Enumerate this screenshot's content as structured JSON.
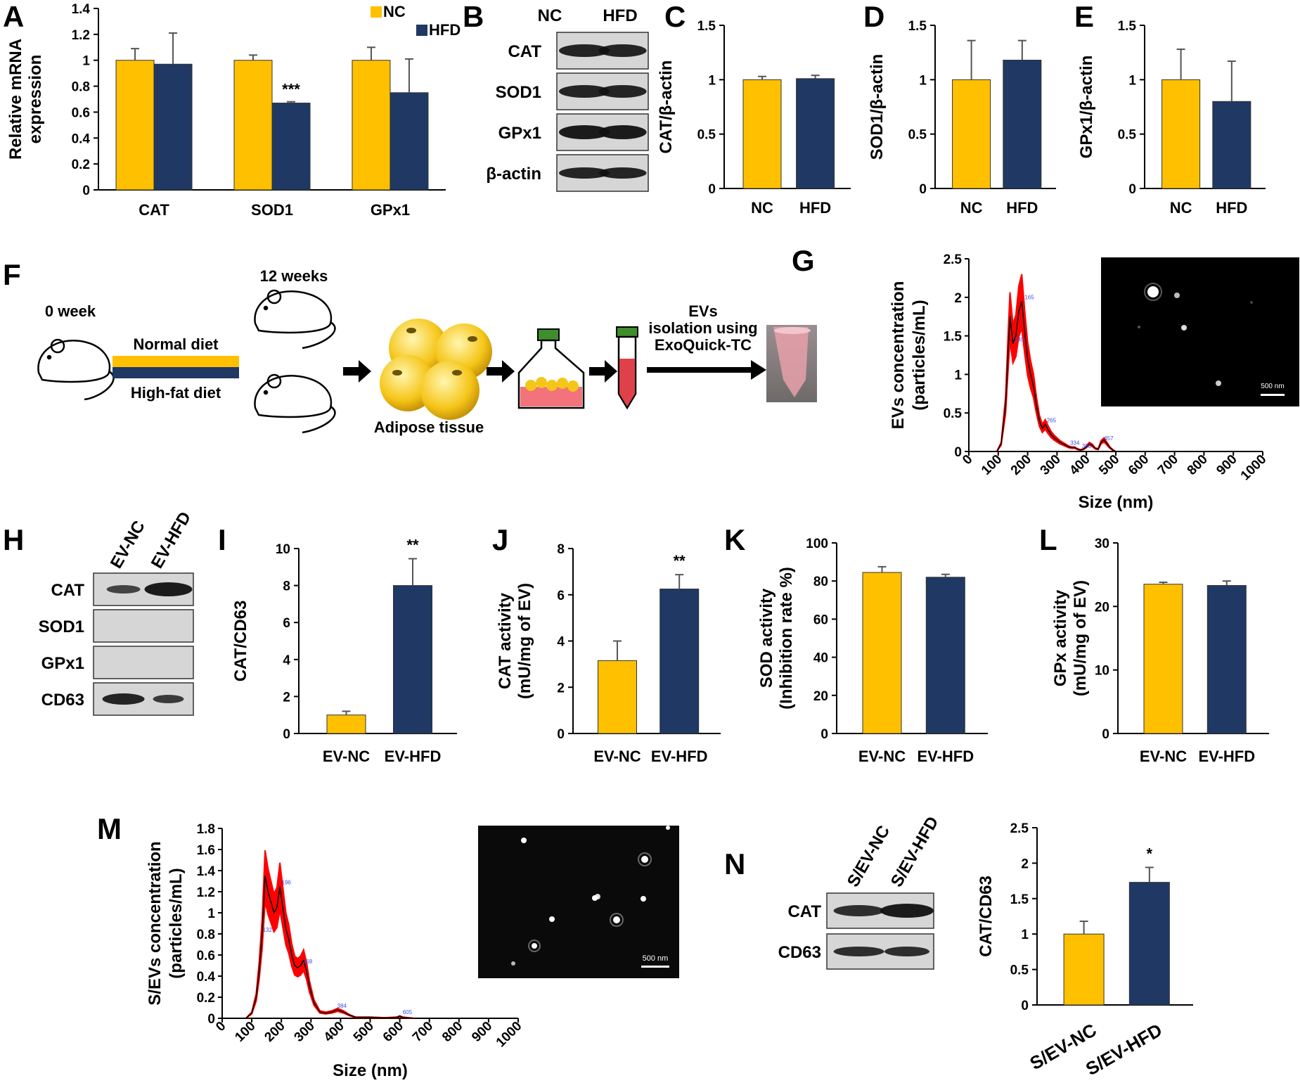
{
  "colors": {
    "nc": "#FFC000",
    "hfd": "#1F3864",
    "nta_band": "#FF0000",
    "nta_line": "#000000"
  },
  "panel_labels": [
    "A",
    "B",
    "C",
    "D",
    "E",
    "F",
    "G",
    "H",
    "I",
    "J",
    "K",
    "L",
    "M",
    "N"
  ],
  "chart_data": [
    {
      "id": "A",
      "type": "bar",
      "ylabel": [
        "Relative mRNA",
        "expression"
      ],
      "ylim": [
        0,
        1.4
      ],
      "yticks": [
        "0",
        "0.2",
        "0.4",
        "0.6",
        "0.8",
        "1",
        "1.2",
        "1.4"
      ],
      "categories": [
        "CAT",
        "SOD1",
        "GPx1"
      ],
      "series": [
        {
          "name": "NC",
          "values": [
            1.0,
            1.0,
            1.0
          ],
          "errors": [
            0.09,
            0.04,
            0.1
          ]
        },
        {
          "name": "HFD",
          "values": [
            0.97,
            0.67,
            0.75
          ],
          "errors": [
            0.24,
            0.01,
            0.26
          ]
        }
      ],
      "legend": [
        "NC",
        "HFD"
      ],
      "annotations": [
        {
          "category": "SOD1",
          "series": "HFD",
          "text": "***"
        }
      ]
    },
    {
      "id": "C",
      "type": "bar",
      "ylabel": [
        "CAT/β-actin"
      ],
      "ylim": [
        0,
        1.5
      ],
      "yticks": [
        "0",
        "0.5",
        "1",
        "1.5"
      ],
      "categories": [
        "NC",
        "HFD"
      ],
      "values": [
        1.0,
        1.01
      ],
      "errors": [
        0.03,
        0.03
      ]
    },
    {
      "id": "D",
      "type": "bar",
      "ylabel": [
        "SOD1/β-actin"
      ],
      "ylim": [
        0,
        1.5
      ],
      "yticks": [
        "0",
        "0.5",
        "1",
        "1.5"
      ],
      "categories": [
        "NC",
        "HFD"
      ],
      "values": [
        1.0,
        1.18
      ],
      "errors": [
        0.36,
        0.18
      ]
    },
    {
      "id": "E",
      "type": "bar",
      "ylabel": [
        "GPx1/β-actin"
      ],
      "ylim": [
        0,
        1.5
      ],
      "yticks": [
        "0",
        "0.5",
        "1",
        "1.5"
      ],
      "categories": [
        "NC",
        "HFD"
      ],
      "values": [
        1.0,
        0.8
      ],
      "errors": [
        0.28,
        0.37
      ]
    },
    {
      "id": "I",
      "type": "bar",
      "ylabel": [
        "CAT/CD63"
      ],
      "ylim": [
        0,
        10
      ],
      "yticks": [
        "0",
        "2",
        "4",
        "6",
        "8",
        "10"
      ],
      "categories": [
        "EV-NC",
        "EV-HFD"
      ],
      "values": [
        1.0,
        8.0
      ],
      "errors": [
        0.2,
        1.45
      ],
      "annotations": [
        {
          "index": 1,
          "text": "**"
        }
      ]
    },
    {
      "id": "J",
      "type": "bar",
      "ylabel": [
        "CAT activity",
        "(mU/mg of EV)"
      ],
      "ylim": [
        0,
        8
      ],
      "yticks": [
        "0",
        "2",
        "4",
        "6",
        "8"
      ],
      "categories": [
        "EV-NC",
        "EV-HFD"
      ],
      "values": [
        3.15,
        6.25
      ],
      "errors": [
        0.85,
        0.62
      ],
      "annotations": [
        {
          "index": 1,
          "text": "**"
        }
      ]
    },
    {
      "id": "K",
      "type": "bar",
      "ylabel": [
        "SOD activity",
        "(Inhibition rate %)"
      ],
      "ylim": [
        0,
        100
      ],
      "yticks": [
        "0",
        "20",
        "40",
        "60",
        "80",
        "100"
      ],
      "categories": [
        "EV-NC",
        "EV-HFD"
      ],
      "values": [
        84.5,
        82.0
      ],
      "errors": [
        3.0,
        1.5
      ]
    },
    {
      "id": "L",
      "type": "bar",
      "ylabel": [
        "GPx activity",
        "(mU/mg of EV)"
      ],
      "ylim": [
        0,
        30
      ],
      "yticks": [
        "0",
        "10",
        "20",
        "30"
      ],
      "categories": [
        "EV-NC",
        "EV-HFD"
      ],
      "values": [
        23.5,
        23.3
      ],
      "errors": [
        0.3,
        0.7
      ]
    },
    {
      "id": "N",
      "type": "bar",
      "ylabel": [
        "CAT/CD63"
      ],
      "ylim": [
        0,
        2.5
      ],
      "yticks": [
        "0",
        "0.5",
        "1",
        "1.5",
        "2",
        "2.5"
      ],
      "categories": [
        "S/EV-NC",
        "S/EV-HFD"
      ],
      "values": [
        1.0,
        1.73
      ],
      "errors": [
        0.18,
        0.21
      ],
      "annotations": [
        {
          "index": 1,
          "text": "*"
        }
      ]
    },
    {
      "id": "G",
      "type": "line",
      "xlabel": "Size (nm)",
      "ylabel": [
        "EVs concentration",
        "(particles/mL)"
      ],
      "xlim": [
        0,
        1000
      ],
      "ylim": [
        0,
        2.5
      ],
      "xticks": [
        "0",
        "100",
        "200",
        "300",
        "400",
        "500",
        "600",
        "700",
        "800",
        "900",
        "1000"
      ],
      "yticks": [
        "0",
        "0.5",
        "1",
        "1.5",
        "2",
        "2.5"
      ],
      "x": [
        95,
        110,
        125,
        135,
        140,
        150,
        160,
        170,
        180,
        190,
        200,
        210,
        220,
        230,
        240,
        250,
        260,
        270,
        280,
        290,
        300,
        310,
        320,
        330,
        340,
        350,
        360,
        370,
        380,
        390,
        400,
        410,
        420,
        430,
        440,
        450,
        460,
        470,
        480,
        490,
        500
      ],
      "y": [
        0,
        0.1,
        0.6,
        1.4,
        1.75,
        1.4,
        1.5,
        1.82,
        1.95,
        1.55,
        1.2,
        1.0,
        0.85,
        0.6,
        0.4,
        0.3,
        0.35,
        0.28,
        0.22,
        0.18,
        0.15,
        0.12,
        0.1,
        0.08,
        0.06,
        0.05,
        0.05,
        0.03,
        0.02,
        0.03,
        0.06,
        0.1,
        0.08,
        0.04,
        0.03,
        0.12,
        0.15,
        0.1,
        0.05,
        0.02,
        0
      ],
      "peak_labels": [
        {
          "x": 150,
          "text": "130"
        },
        {
          "x": 185,
          "text": "165"
        },
        {
          "x": 260,
          "text": "265"
        },
        {
          "x": 340,
          "text": "334"
        },
        {
          "x": 380,
          "text": "385"
        },
        {
          "x": 455,
          "text": "457"
        }
      ]
    },
    {
      "id": "M",
      "type": "line",
      "xlabel": "Size (nm)",
      "ylabel": [
        "S/EVs concentration",
        "(particles/mL)"
      ],
      "xlim": [
        0,
        1000
      ],
      "ylim": [
        0,
        1.8
      ],
      "xticks": [
        "0",
        "100",
        "200",
        "300",
        "400",
        "500",
        "600",
        "700",
        "800",
        "900",
        "1000"
      ],
      "yticks": [
        "0",
        "0.2",
        "0.4",
        "0.6",
        "0.8",
        "1",
        "1.2",
        "1.4",
        "1.6",
        "1.8"
      ],
      "x": [
        80,
        100,
        115,
        125,
        135,
        145,
        155,
        165,
        175,
        185,
        195,
        205,
        215,
        225,
        235,
        245,
        255,
        265,
        275,
        285,
        295,
        310,
        330,
        350,
        370,
        390,
        410,
        430,
        450,
        470,
        500,
        550,
        590,
        600,
        610,
        650
      ],
      "y": [
        0,
        0.05,
        0.2,
        0.45,
        0.8,
        1.35,
        1.2,
        1.1,
        1.0,
        1.05,
        1.25,
        1.05,
        0.85,
        0.75,
        0.6,
        0.5,
        0.48,
        0.5,
        0.55,
        0.45,
        0.3,
        0.15,
        0.06,
        0.05,
        0.06,
        0.08,
        0.06,
        0.03,
        0.01,
        0.01,
        0.01,
        0.005,
        0.01,
        0.02,
        0.01,
        0
      ],
      "peak_labels": [
        {
          "x": 132,
          "text": "132"
        },
        {
          "x": 196,
          "text": "196"
        },
        {
          "x": 268,
          "text": "268"
        },
        {
          "x": 384,
          "text": "384"
        },
        {
          "x": 605,
          "text": "605"
        }
      ]
    }
  ],
  "blots": {
    "B": {
      "columns": [
        "NC",
        "HFD"
      ],
      "rows": [
        "CAT",
        "SOD1",
        "GPx1",
        "β-actin"
      ]
    },
    "H": {
      "columns": [
        "EV-NC",
        "EV-HFD"
      ],
      "rows": [
        "CAT",
        "SOD1",
        "GPx1",
        "CD63"
      ]
    },
    "N": {
      "columns": [
        "S/EV-NC",
        "S/EV-HFD"
      ],
      "rows": [
        "CAT",
        "CD63"
      ]
    }
  },
  "schematic": {
    "start_label": "0 week",
    "end_label": "12 weeks",
    "diet_top": "Normal diet",
    "diet_bottom": "High-fat diet",
    "tissue_label": "Adipose tissue",
    "isolation_label": [
      "EVs",
      "isolation using",
      "ExoQuick-TC"
    ]
  },
  "scale_bars": {
    "G": "500 nm",
    "M": "500 nm"
  }
}
